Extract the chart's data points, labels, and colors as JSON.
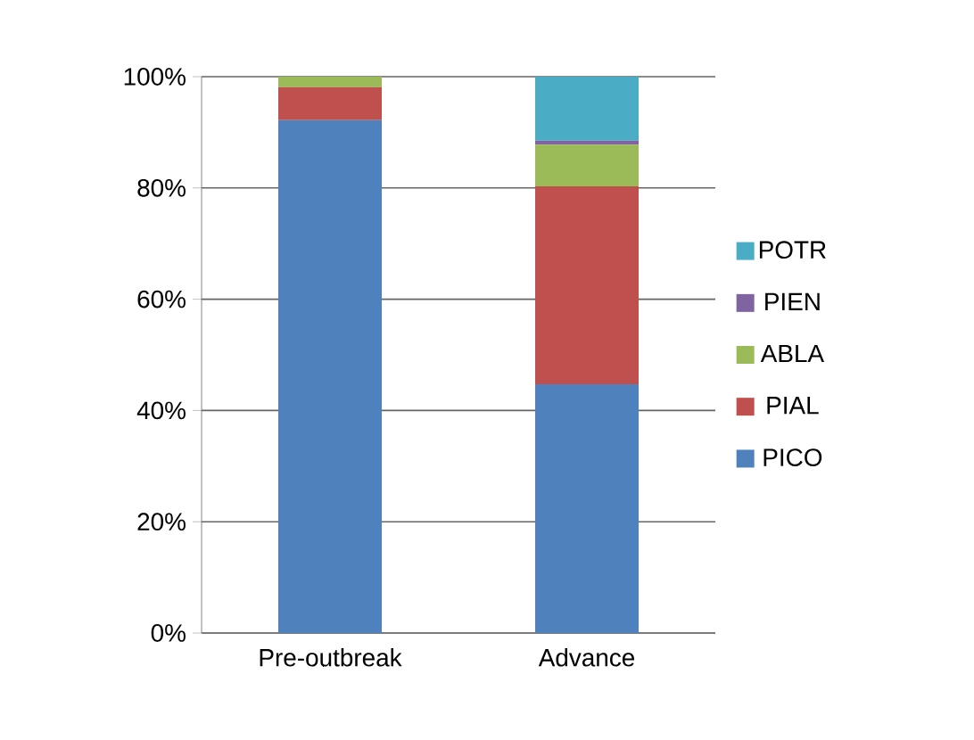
{
  "chart_data": {
    "type": "bar",
    "stacked": true,
    "categories": [
      "Pre-outbreak",
      "Advance"
    ],
    "series": [
      {
        "name": "PICO",
        "color": "#4f81bd",
        "values": [
          92.2,
          44.7
        ]
      },
      {
        "name": "PIAL",
        "color": "#c0504d",
        "values": [
          5.9,
          35.6
        ]
      },
      {
        "name": "ABLA",
        "color": "#9bbb59",
        "values": [
          1.9,
          7.5
        ]
      },
      {
        "name": "PIEN",
        "color": "#8064a2",
        "values": [
          0,
          0.7
        ]
      },
      {
        "name": "POTR",
        "color": "#4bacc6",
        "values": [
          0,
          11.5
        ]
      }
    ],
    "ylim": [
      0,
      100
    ],
    "yticks": [
      {
        "value": 0,
        "label": "0%"
      },
      {
        "value": 20,
        "label": "20%"
      },
      {
        "value": 40,
        "label": "40%"
      },
      {
        "value": 60,
        "label": "60%"
      },
      {
        "value": 80,
        "label": "80%"
      },
      {
        "value": 100,
        "label": "100%"
      }
    ],
    "grid": "y",
    "legend": "right"
  }
}
